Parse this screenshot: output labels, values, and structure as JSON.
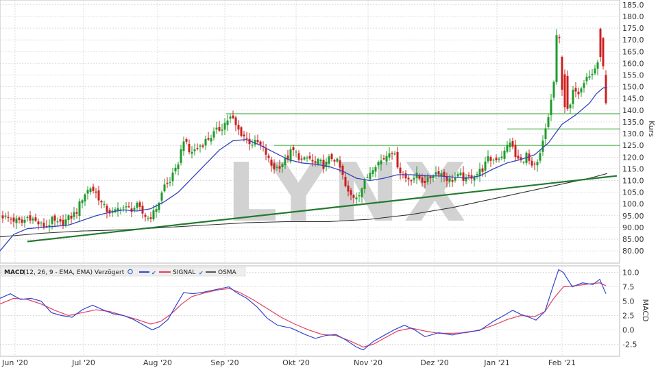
{
  "watermark": "LYNX",
  "colors": {
    "up": "#1e9b2a",
    "down": "#cc1f1f",
    "ma_short": "#3344bb",
    "ma_long": "#333333",
    "levels": "#55b555",
    "trendline": "#227a30",
    "macd": "#3344cc",
    "signal": "#e04060",
    "grid": "#c8c8c8"
  },
  "x_axis_labels": [
    "Jun '20",
    "Jul '20",
    "Aug '20",
    "Sep '20",
    "Okt '20",
    "Nov '20",
    "Dez '20",
    "Jan '21",
    "Feb '21"
  ],
  "macd_legend": {
    "label": "MACD",
    "params": "(12, 26, 9 - EMA, EMA) Verzögert",
    "series": [
      "SIGNAL",
      "OSMA"
    ]
  },
  "chart_data": [
    {
      "type": "candlestick",
      "ylabel": "Kurs",
      "ylim": [
        80,
        185
      ],
      "yticks": [
        "80.00",
        "85.00",
        "90.00",
        "95.00",
        "100.0",
        "105.0",
        "110.0",
        "115.0",
        "120.0",
        "125.0",
        "130.0",
        "135.0",
        "140.0",
        "145.0",
        "150.0",
        "155.0",
        "160.0",
        "165.0",
        "170.0",
        "175.0",
        "180.0",
        "185.0"
      ],
      "grid": true,
      "close_path": [
        [
          0,
          95.5
        ],
        [
          10,
          94
        ],
        [
          22,
          93
        ],
        [
          32,
          92
        ],
        [
          42,
          95
        ],
        [
          54,
          92
        ],
        [
          66,
          90
        ],
        [
          76,
          93
        ],
        [
          86,
          91
        ],
        [
          96,
          93
        ],
        [
          106,
          95
        ],
        [
          112,
          97
        ],
        [
          122,
          104
        ],
        [
          132,
          107
        ],
        [
          142,
          104
        ],
        [
          150,
          99
        ],
        [
          158,
          97
        ],
        [
          166,
          96
        ],
        [
          176,
          99
        ],
        [
          184,
          98
        ],
        [
          192,
          98
        ],
        [
          200,
          99
        ],
        [
          208,
          96
        ],
        [
          216,
          94
        ],
        [
          224,
          96
        ],
        [
          232,
          101
        ],
        [
          240,
          108
        ],
        [
          248,
          110
        ],
        [
          256,
          114
        ],
        [
          262,
          120
        ],
        [
          268,
          128
        ],
        [
          276,
          122
        ],
        [
          284,
          123
        ],
        [
          292,
          125
        ],
        [
          300,
          127
        ],
        [
          308,
          129
        ],
        [
          316,
          131
        ],
        [
          324,
          133
        ],
        [
          332,
          136
        ],
        [
          338,
          137
        ],
        [
          346,
          132
        ],
        [
          356,
          129
        ],
        [
          366,
          126
        ],
        [
          376,
          126
        ],
        [
          386,
          123
        ],
        [
          394,
          117
        ],
        [
          402,
          115
        ],
        [
          410,
          117
        ],
        [
          418,
          119
        ],
        [
          426,
          123
        ],
        [
          434,
          121
        ],
        [
          442,
          118
        ],
        [
          450,
          120
        ],
        [
          458,
          117
        ],
        [
          466,
          118
        ],
        [
          474,
          116
        ],
        [
          482,
          120
        ],
        [
          490,
          119
        ],
        [
          498,
          114
        ],
        [
          506,
          105
        ],
        [
          514,
          103
        ],
        [
          522,
          104
        ],
        [
          530,
          108
        ],
        [
          538,
          113
        ],
        [
          546,
          117
        ],
        [
          554,
          118
        ],
        [
          562,
          120
        ],
        [
          570,
          124
        ],
        [
          576,
          120
        ],
        [
          584,
          114
        ],
        [
          592,
          111
        ],
        [
          600,
          111
        ],
        [
          608,
          112
        ],
        [
          616,
          110
        ],
        [
          624,
          110
        ],
        [
          632,
          113
        ],
        [
          640,
          114
        ],
        [
          648,
          112
        ],
        [
          656,
          110
        ],
        [
          664,
          111
        ],
        [
          672,
          112
        ],
        [
          680,
          110
        ],
        [
          688,
          112
        ],
        [
          696,
          113
        ],
        [
          704,
          115
        ],
        [
          712,
          119
        ],
        [
          720,
          119
        ],
        [
          728,
          120
        ],
        [
          736,
          122
        ],
        [
          744,
          127
        ],
        [
          752,
          120
        ],
        [
          760,
          118
        ],
        [
          768,
          121
        ],
        [
          776,
          115
        ],
        [
          784,
          117
        ],
        [
          790,
          123
        ],
        [
          796,
          132
        ],
        [
          802,
          140
        ],
        [
          808,
          152
        ],
        [
          814,
          180
        ],
        [
          820,
          150
        ],
        [
          826,
          138
        ],
        [
          832,
          142
        ],
        [
          838,
          150
        ],
        [
          844,
          148
        ],
        [
          850,
          152
        ],
        [
          856,
          155
        ],
        [
          862,
          154
        ],
        [
          868,
          158
        ],
        [
          874,
          162
        ],
        [
          880,
          160
        ],
        [
          886,
          133
        ]
      ],
      "candle_step": 4,
      "moving_average_short": [
        [
          0,
          80
        ],
        [
          20,
          87
        ],
        [
          40,
          89.5
        ],
        [
          60,
          90
        ],
        [
          80,
          90.5
        ],
        [
          100,
          91
        ],
        [
          120,
          93
        ],
        [
          140,
          95
        ],
        [
          160,
          96.5
        ],
        [
          180,
          97.5
        ],
        [
          200,
          97
        ],
        [
          220,
          98
        ],
        [
          240,
          101
        ],
        [
          260,
          105
        ],
        [
          280,
          111
        ],
        [
          300,
          117
        ],
        [
          320,
          123
        ],
        [
          340,
          127
        ],
        [
          360,
          127.5
        ],
        [
          380,
          125
        ],
        [
          400,
          122
        ],
        [
          420,
          119
        ],
        [
          440,
          117.5
        ],
        [
          460,
          117
        ],
        [
          480,
          116
        ],
        [
          500,
          114
        ],
        [
          520,
          111
        ],
        [
          540,
          110
        ],
        [
          560,
          111
        ],
        [
          580,
          112.5
        ],
        [
          600,
          112.5
        ],
        [
          620,
          112
        ],
        [
          640,
          112
        ],
        [
          660,
          111.5
        ],
        [
          680,
          111
        ],
        [
          700,
          112
        ],
        [
          720,
          115
        ],
        [
          740,
          117.5
        ],
        [
          760,
          119
        ],
        [
          780,
          121
        ],
        [
          800,
          126
        ],
        [
          820,
          134
        ],
        [
          840,
          138
        ],
        [
          860,
          143
        ],
        [
          870,
          147
        ],
        [
          880,
          149.5
        ],
        [
          886,
          149.7
        ]
      ],
      "moving_average_long": [
        [
          0,
          86
        ],
        [
          60,
          87.5
        ],
        [
          120,
          88.5
        ],
        [
          180,
          89
        ],
        [
          240,
          90
        ],
        [
          300,
          91
        ],
        [
          360,
          92
        ],
        [
          420,
          92.5
        ],
        [
          480,
          92.5
        ],
        [
          540,
          93.5
        ],
        [
          600,
          95.5
        ],
        [
          660,
          98.5
        ],
        [
          700,
          101
        ],
        [
          740,
          103.5
        ],
        [
          780,
          106
        ],
        [
          820,
          108.5
        ],
        [
          860,
          111
        ],
        [
          886,
          113
        ]
      ],
      "horizontal_levels": [
        {
          "price": 138.5,
          "from": 330,
          "to": 905
        },
        {
          "price": 132,
          "from": 740,
          "to": 905
        },
        {
          "price": 125,
          "from": 400,
          "to": 905
        }
      ],
      "trendline": {
        "start": [
          40,
          84
        ],
        "end": [
          900,
          112
        ]
      },
      "last_close": 133
    },
    {
      "type": "line",
      "title": "MACD",
      "ylabel": "MACD",
      "ylim": [
        -4,
        11
      ],
      "yticks": [
        "-2.5",
        "0.0",
        "2.5",
        "5.0",
        "7.5",
        "10.0"
      ],
      "grid": true,
      "series": [
        {
          "name": "MACD",
          "points": [
            [
              0,
              5.5
            ],
            [
              15,
              6.3
            ],
            [
              30,
              5.3
            ],
            [
              45,
              5.5
            ],
            [
              60,
              5
            ],
            [
              75,
              3
            ],
            [
              90,
              2.5
            ],
            [
              105,
              2.2
            ],
            [
              120,
              3.5
            ],
            [
              135,
              4.3
            ],
            [
              150,
              3.5
            ],
            [
              165,
              2.8
            ],
            [
              180,
              2.5
            ],
            [
              195,
              1.8
            ],
            [
              210,
              0.8
            ],
            [
              222,
              0
            ],
            [
              232,
              0.5
            ],
            [
              245,
              1.8
            ],
            [
              258,
              4.5
            ],
            [
              268,
              6.5
            ],
            [
              282,
              6.3
            ],
            [
              298,
              6.6
            ],
            [
              314,
              7
            ],
            [
              334,
              7.5
            ],
            [
              345,
              6.5
            ],
            [
              360,
              5.5
            ],
            [
              375,
              4
            ],
            [
              390,
              2
            ],
            [
              405,
              0.8
            ],
            [
              425,
              0.3
            ],
            [
              445,
              -0.8
            ],
            [
              460,
              -1.5
            ],
            [
              475,
              -1
            ],
            [
              490,
              -0.8
            ],
            [
              505,
              -1.8
            ],
            [
              520,
              -3
            ],
            [
              530,
              -3.5
            ],
            [
              545,
              -2
            ],
            [
              560,
              -1
            ],
            [
              575,
              0
            ],
            [
              590,
              0.8
            ],
            [
              605,
              0
            ],
            [
              620,
              -1.2
            ],
            [
              640,
              -0.5
            ],
            [
              660,
              -0.9
            ],
            [
              680,
              -0.4
            ],
            [
              700,
              -0.1
            ],
            [
              720,
              1.5
            ],
            [
              735,
              2.5
            ],
            [
              748,
              3.4
            ],
            [
              760,
              2.7
            ],
            [
              772,
              2.2
            ],
            [
              782,
              1.7
            ],
            [
              795,
              3.2
            ],
            [
              808,
              8
            ],
            [
              815,
              10.5
            ],
            [
              822,
              10
            ],
            [
              835,
              7.5
            ],
            [
              850,
              8.2
            ],
            [
              865,
              7.9
            ],
            [
              875,
              8.8
            ],
            [
              884,
              6.3
            ]
          ]
        },
        {
          "name": "SIGNAL",
          "points": [
            [
              0,
              4.5
            ],
            [
              20,
              5.5
            ],
            [
              40,
              5.3
            ],
            [
              60,
              4.5
            ],
            [
              80,
              3.4
            ],
            [
              100,
              2.5
            ],
            [
              120,
              3
            ],
            [
              140,
              3.5
            ],
            [
              160,
              3.2
            ],
            [
              180,
              2.5
            ],
            [
              200,
              1.8
            ],
            [
              220,
              1
            ],
            [
              235,
              1.5
            ],
            [
              250,
              2.8
            ],
            [
              265,
              4.5
            ],
            [
              280,
              5.8
            ],
            [
              300,
              6.5
            ],
            [
              320,
              7
            ],
            [
              335,
              7.2
            ],
            [
              350,
              6.5
            ],
            [
              370,
              5.2
            ],
            [
              390,
              3.7
            ],
            [
              410,
              2.2
            ],
            [
              430,
              1
            ],
            [
              450,
              0
            ],
            [
              470,
              -0.8
            ],
            [
              490,
              -1
            ],
            [
              510,
              -1.9
            ],
            [
              530,
              -3
            ],
            [
              545,
              -2.5
            ],
            [
              560,
              -1.5
            ],
            [
              580,
              -0.2
            ],
            [
              600,
              0.3
            ],
            [
              620,
              -0.2
            ],
            [
              640,
              -0.6
            ],
            [
              660,
              -0.6
            ],
            [
              680,
              -0.5
            ],
            [
              700,
              0
            ],
            [
              720,
              0.8
            ],
            [
              740,
              1.8
            ],
            [
              760,
              2.5
            ],
            [
              780,
              2.3
            ],
            [
              795,
              3.2
            ],
            [
              808,
              5.5
            ],
            [
              822,
              7.5
            ],
            [
              840,
              7.7
            ],
            [
              860,
              8
            ],
            [
              875,
              8.2
            ],
            [
              884,
              7.7
            ]
          ]
        },
        {
          "name": "OSMA",
          "points": []
        }
      ]
    }
  ]
}
